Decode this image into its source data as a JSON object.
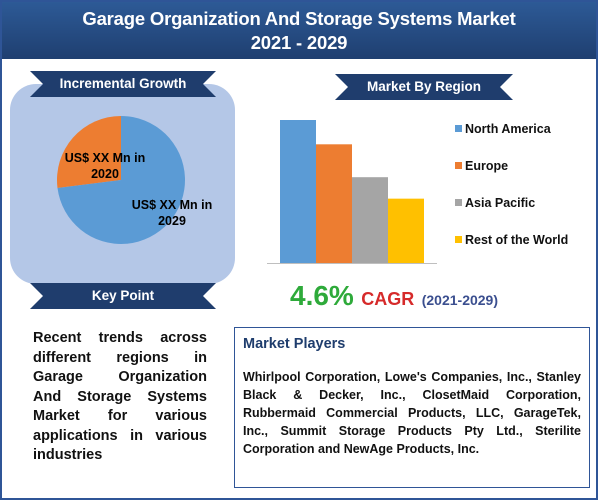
{
  "title": {
    "line1": "Garage Organization And Storage Systems Market",
    "line2": "2021 - 2029"
  },
  "incremental_growth": {
    "heading": "Incremental Growth",
    "label_2020": "US$ XX Mn in 2020",
    "label_2029": "US$ XX Mn in 2029"
  },
  "key_point": {
    "heading": "Key Point",
    "text": "Recent trends across different regions in Garage Organization And Storage Systems Market for various applications in various industries"
  },
  "market_by_region": {
    "heading": "Market By Region"
  },
  "cagr": {
    "value": "4.6%",
    "label": "CAGR",
    "period": "(2021-2029)"
  },
  "market_players": {
    "heading": "Market Players",
    "text": "Whirlpool Corporation, Lowe's Companies, Inc., Stanley Black & Decker, Inc., ClosetMaid Corporation, Rubbermaid Commercial Products, LLC, GarageTek, Inc., Summit Storage Products Pty Ltd., Sterilite Corporation and NewAge Products, Inc."
  },
  "colors": {
    "title_bg": "#2d5a96",
    "ribbon_bg": "#1f3d6d",
    "panel_bg": "#b4c7e7",
    "cagr_value": "#2eaa3a",
    "cagr_label": "#d62a2a"
  },
  "chart_data": [
    {
      "type": "pie",
      "labels": [
        "US$ XX Mn in 2020",
        "US$ XX Mn in 2029"
      ],
      "values": [
        27,
        73
      ],
      "colors": [
        "#ed7d31",
        "#5b9bd5"
      ]
    },
    {
      "type": "bar",
      "title": "Market By Region",
      "categories": [
        "North America",
        "Europe",
        "Asia Pacific",
        "Rest of the World"
      ],
      "values": [
        100,
        83,
        60,
        45
      ],
      "colors": [
        "#5b9bd5",
        "#ed7d31",
        "#a5a5a5",
        "#ffc000"
      ],
      "ylim": [
        0,
        100
      ],
      "grid": false,
      "legend_position": "right"
    }
  ]
}
